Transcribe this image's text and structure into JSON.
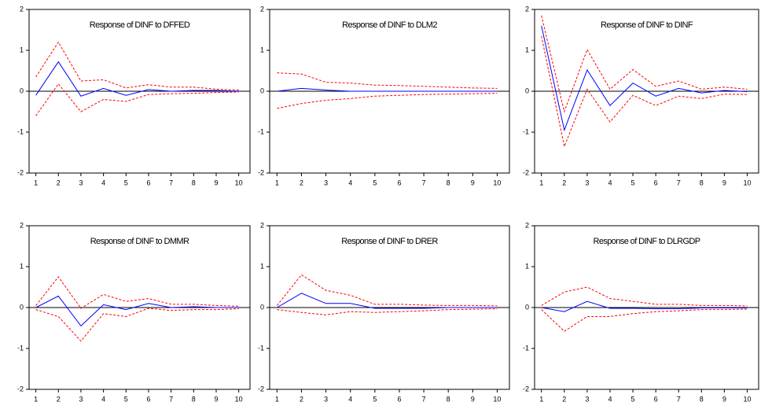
{
  "chart_data": [
    {
      "type": "line",
      "title": "Response of DINF to DFFED",
      "x": [
        1,
        2,
        3,
        4,
        5,
        6,
        7,
        8,
        9,
        10
      ],
      "series": [
        {
          "color": "#0000ff",
          "dashed": false,
          "values": [
            -0.1,
            0.72,
            -0.12,
            0.07,
            -0.1,
            0.04,
            0.0,
            0.02,
            0.02,
            0.0
          ]
        },
        {
          "color": "#ff0000",
          "dashed": true,
          "values": [
            0.35,
            1.2,
            0.25,
            0.28,
            0.08,
            0.16,
            0.1,
            0.1,
            0.05,
            0.03
          ]
        },
        {
          "color": "#ff0000",
          "dashed": true,
          "values": [
            -0.6,
            0.18,
            -0.5,
            -0.2,
            -0.25,
            -0.08,
            -0.06,
            -0.05,
            -0.03,
            -0.02
          ]
        }
      ],
      "xlim": [
        0.7,
        10.5
      ],
      "xticks": [
        1,
        2,
        3,
        4,
        5,
        6,
        7,
        8,
        9,
        10
      ],
      "ylim": [
        -2,
        2
      ],
      "yticks": [
        -2,
        -1,
        0,
        1,
        2
      ]
    },
    {
      "type": "line",
      "title": "Response of DINF to DLM2",
      "x": [
        1,
        2,
        3,
        4,
        5,
        6,
        7,
        8,
        9,
        10
      ],
      "series": [
        {
          "color": "#0000ff",
          "dashed": false,
          "values": [
            0.0,
            0.07,
            0.03,
            0.0,
            0.0,
            0.0,
            0.0,
            0.0,
            0.0,
            0.0
          ]
        },
        {
          "color": "#ff0000",
          "dashed": true,
          "values": [
            0.45,
            0.42,
            0.22,
            0.2,
            0.15,
            0.14,
            0.12,
            0.1,
            0.08,
            0.07
          ]
        },
        {
          "color": "#ff0000",
          "dashed": true,
          "values": [
            -0.42,
            -0.3,
            -0.22,
            -0.18,
            -0.12,
            -0.1,
            -0.08,
            -0.07,
            -0.06,
            -0.05
          ]
        }
      ],
      "xlim": [
        0.7,
        10.5
      ],
      "xticks": [
        1,
        2,
        3,
        4,
        5,
        6,
        7,
        8,
        9,
        10
      ],
      "ylim": [
        -2,
        2
      ],
      "yticks": [
        -2,
        -1,
        0,
        1,
        2
      ]
    },
    {
      "type": "line",
      "title": "Response of DINF to DINF",
      "x": [
        1,
        2,
        3,
        4,
        5,
        6,
        7,
        8,
        9,
        10
      ],
      "series": [
        {
          "color": "#0000ff",
          "dashed": false,
          "values": [
            1.6,
            -0.95,
            0.52,
            -0.35,
            0.2,
            -0.12,
            0.07,
            -0.04,
            0.02,
            -0.01
          ]
        },
        {
          "color": "#ff0000",
          "dashed": true,
          "values": [
            1.85,
            -0.5,
            1.02,
            0.05,
            0.53,
            0.12,
            0.25,
            0.05,
            0.1,
            0.05
          ]
        },
        {
          "color": "#ff0000",
          "dashed": true,
          "values": [
            1.35,
            -1.35,
            0.05,
            -0.75,
            -0.1,
            -0.35,
            -0.12,
            -0.18,
            -0.07,
            -0.08
          ]
        }
      ],
      "xlim": [
        0.7,
        10.5
      ],
      "xticks": [
        1,
        2,
        3,
        4,
        5,
        6,
        7,
        8,
        9,
        10
      ],
      "ylim": [
        -2,
        2
      ],
      "yticks": [
        -2,
        -1,
        0,
        1,
        2
      ]
    },
    {
      "type": "line",
      "title": "Response of DINF to DMMR",
      "x": [
        1,
        2,
        3,
        4,
        5,
        6,
        7,
        8,
        9,
        10
      ],
      "series": [
        {
          "color": "#0000ff",
          "dashed": false,
          "values": [
            0.0,
            0.28,
            -0.45,
            0.07,
            -0.05,
            0.1,
            0.0,
            0.02,
            0.0,
            0.0
          ]
        },
        {
          "color": "#ff0000",
          "dashed": true,
          "values": [
            0.05,
            0.75,
            -0.02,
            0.32,
            0.15,
            0.22,
            0.08,
            0.08,
            0.05,
            0.03
          ]
        },
        {
          "color": "#ff0000",
          "dashed": true,
          "values": [
            -0.05,
            -0.22,
            -0.82,
            -0.15,
            -0.22,
            -0.02,
            -0.07,
            -0.05,
            -0.05,
            -0.03
          ]
        }
      ],
      "xlim": [
        0.7,
        10.5
      ],
      "xticks": [
        1,
        2,
        3,
        4,
        5,
        6,
        7,
        8,
        9,
        10
      ],
      "ylim": [
        -2,
        2
      ],
      "yticks": [
        -2,
        -1,
        0,
        1,
        2
      ]
    },
    {
      "type": "line",
      "title": "Response of DINF to DRER",
      "x": [
        1,
        2,
        3,
        4,
        5,
        6,
        7,
        8,
        9,
        10
      ],
      "series": [
        {
          "color": "#0000ff",
          "dashed": false,
          "values": [
            0.0,
            0.35,
            0.1,
            0.1,
            -0.02,
            -0.02,
            -0.02,
            0.0,
            0.0,
            0.0
          ]
        },
        {
          "color": "#ff0000",
          "dashed": true,
          "values": [
            0.05,
            0.8,
            0.42,
            0.3,
            0.08,
            0.08,
            0.06,
            0.05,
            0.05,
            0.04
          ]
        },
        {
          "color": "#ff0000",
          "dashed": true,
          "values": [
            -0.05,
            -0.12,
            -0.18,
            -0.1,
            -0.12,
            -0.1,
            -0.08,
            -0.05,
            -0.04,
            -0.03
          ]
        }
      ],
      "xlim": [
        0.7,
        10.5
      ],
      "xticks": [
        1,
        2,
        3,
        4,
        5,
        6,
        7,
        8,
        9,
        10
      ],
      "ylim": [
        -2,
        2
      ],
      "yticks": [
        -2,
        -1,
        0,
        1,
        2
      ]
    },
    {
      "type": "line",
      "title": "Response of DINF to DLRGDP",
      "x": [
        1,
        2,
        3,
        4,
        5,
        6,
        7,
        8,
        9,
        10
      ],
      "series": [
        {
          "color": "#0000ff",
          "dashed": false,
          "values": [
            0.0,
            -0.1,
            0.15,
            -0.02,
            -0.02,
            -0.03,
            -0.03,
            -0.01,
            -0.01,
            -0.01
          ]
        },
        {
          "color": "#ff0000",
          "dashed": true,
          "values": [
            0.05,
            0.38,
            0.5,
            0.22,
            0.15,
            0.08,
            0.08,
            0.05,
            0.05,
            0.04
          ]
        },
        {
          "color": "#ff0000",
          "dashed": true,
          "values": [
            -0.05,
            -0.58,
            -0.22,
            -0.22,
            -0.15,
            -0.1,
            -0.08,
            -0.05,
            -0.05,
            -0.04
          ]
        }
      ],
      "xlim": [
        0.7,
        10.5
      ],
      "xticks": [
        1,
        2,
        3,
        4,
        5,
        6,
        7,
        8,
        9,
        10
      ],
      "ylim": [
        -2,
        2
      ],
      "yticks": [
        -2,
        -1,
        0,
        1,
        2
      ]
    }
  ]
}
